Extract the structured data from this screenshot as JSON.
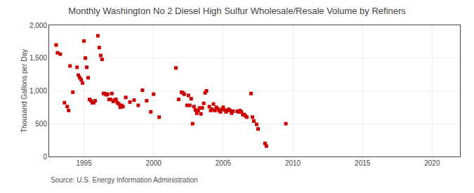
{
  "chart_data": {
    "type": "scatter",
    "title": "Monthly Washington No 2 Diesel High Sulfur Wholesale/Resale Volume by Refiners",
    "ylabel": "Thousand Gallons per Day",
    "annotations": [
      "Source: U.S. Energy Information Administration"
    ],
    "color": "#cc0000",
    "marker": "square",
    "grid": true,
    "xlim": [
      1992.5,
      2022
    ],
    "ylim": [
      0,
      2000
    ],
    "xticks": [
      1995,
      2000,
      2005,
      2010,
      2015,
      2020
    ],
    "yticks": [
      0,
      500,
      {
        "value": 1000,
        "label": "1,000"
      },
      {
        "value": 1500,
        "label": "1,500"
      },
      {
        "value": 2000,
        "label": "2,000"
      }
    ],
    "x": [
      1993.0,
      1993.1,
      1993.3,
      1993.6,
      1993.8,
      1993.9,
      1994.0,
      1994.2,
      1994.5,
      1994.6,
      1994.7,
      1994.8,
      1994.9,
      1995.0,
      1995.1,
      1995.2,
      1995.3,
      1995.4,
      1995.5,
      1995.6,
      1995.7,
      1995.8,
      1996.0,
      1996.1,
      1996.2,
      1996.3,
      1996.4,
      1996.5,
      1996.6,
      1996.7,
      1996.8,
      1996.9,
      1997.0,
      1997.1,
      1997.2,
      1997.3,
      1997.4,
      1997.5,
      1997.6,
      1997.7,
      1997.8,
      1998.0,
      1998.3,
      1998.6,
      1998.9,
      1999.2,
      1999.5,
      1999.8,
      2000.0,
      2000.4,
      2001.6,
      2001.8,
      2002.0,
      2002.1,
      2002.2,
      2002.4,
      2002.5,
      2002.6,
      2002.7,
      2002.8,
      2002.9,
      2003.0,
      2003.1,
      2003.2,
      2003.3,
      2003.4,
      2003.5,
      2003.6,
      2003.7,
      2003.8,
      2004.0,
      2004.1,
      2004.2,
      2004.3,
      2004.4,
      2004.5,
      2004.6,
      2004.7,
      2004.8,
      2004.9,
      2005.0,
      2005.1,
      2005.2,
      2005.3,
      2005.4,
      2005.5,
      2005.6,
      2005.7,
      2006.0,
      2006.1,
      2006.2,
      2006.3,
      2006.4,
      2006.5,
      2006.6,
      2006.7,
      2007.0,
      2007.1,
      2007.2,
      2007.4,
      2007.5,
      2008.0,
      2008.1,
      2009.5
    ],
    "values": [
      1700,
      1580,
      1560,
      820,
      760,
      700,
      1380,
      980,
      1360,
      1240,
      1200,
      1170,
      1120,
      1760,
      1500,
      1360,
      1200,
      870,
      850,
      820,
      820,
      850,
      1840,
      1660,
      1540,
      1480,
      960,
      960,
      940,
      950,
      870,
      870,
      960,
      840,
      860,
      870,
      820,
      800,
      750,
      780,
      760,
      900,
      830,
      860,
      780,
      1010,
      850,
      680,
      950,
      600,
      1350,
      870,
      980,
      970,
      950,
      780,
      930,
      780,
      880,
      500,
      760,
      710,
      660,
      700,
      740,
      650,
      740,
      810,
      970,
      1000,
      760,
      700,
      720,
      800,
      700,
      750,
      730,
      700,
      680,
      720,
      750,
      710,
      680,
      700,
      720,
      700,
      660,
      690,
      690,
      680,
      700,
      680,
      640,
      640,
      620,
      600,
      960,
      600,
      540,
      490,
      420,
      200,
      160,
      500
    ]
  }
}
